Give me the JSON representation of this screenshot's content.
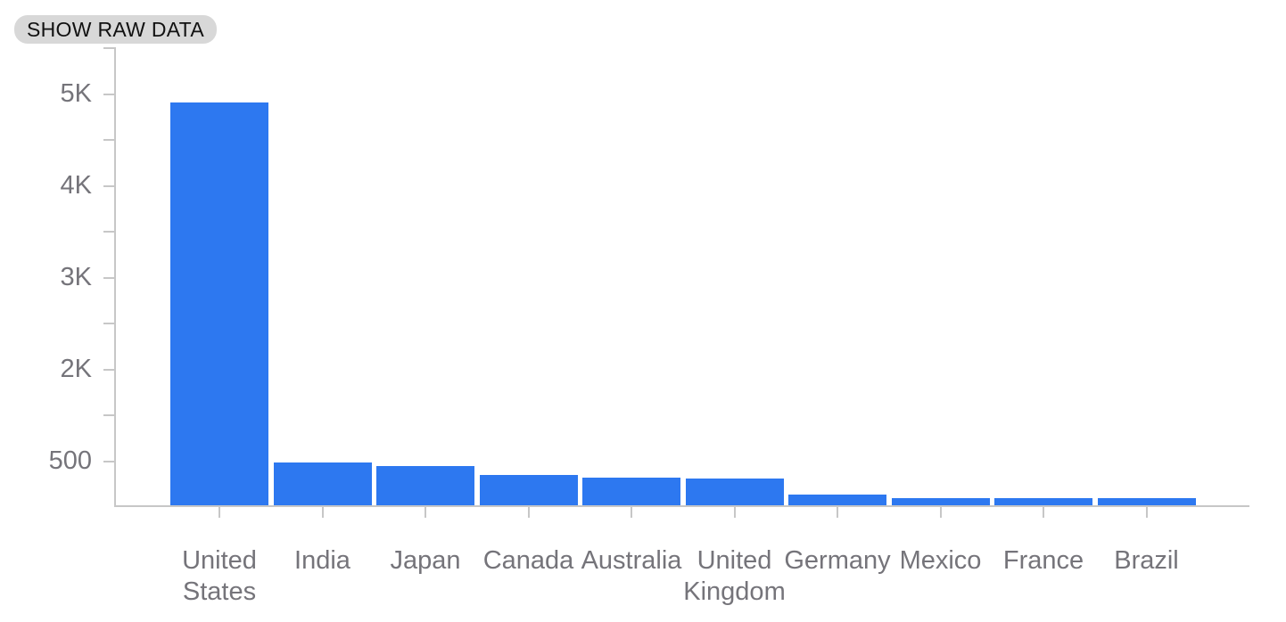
{
  "toolbar": {
    "show_raw_data_label": "SHOW RAW DATA"
  },
  "chart_data": {
    "type": "bar",
    "title": "",
    "xlabel": "",
    "ylabel": "",
    "categories": [
      "United States",
      "India",
      "Japan",
      "Canada",
      "Australia",
      "United Kingdom",
      "Germany",
      "Mexico",
      "France",
      "Brazil"
    ],
    "values": [
      4900,
      525,
      480,
      365,
      340,
      325,
      135,
      92,
      92,
      87
    ],
    "y_tick_labels": [
      "5K",
      "4K",
      "3K",
      "2K",
      "500"
    ],
    "ylim": [
      0,
      5570
    ],
    "grid": false,
    "legend": false,
    "colors": {
      "bar": "#2d78f0",
      "axis": "#c7c7c7",
      "tick_label_text": "#75747a",
      "button_bg": "#d8d8d8",
      "button_text": "#111111",
      "background": "#ffffff"
    }
  }
}
